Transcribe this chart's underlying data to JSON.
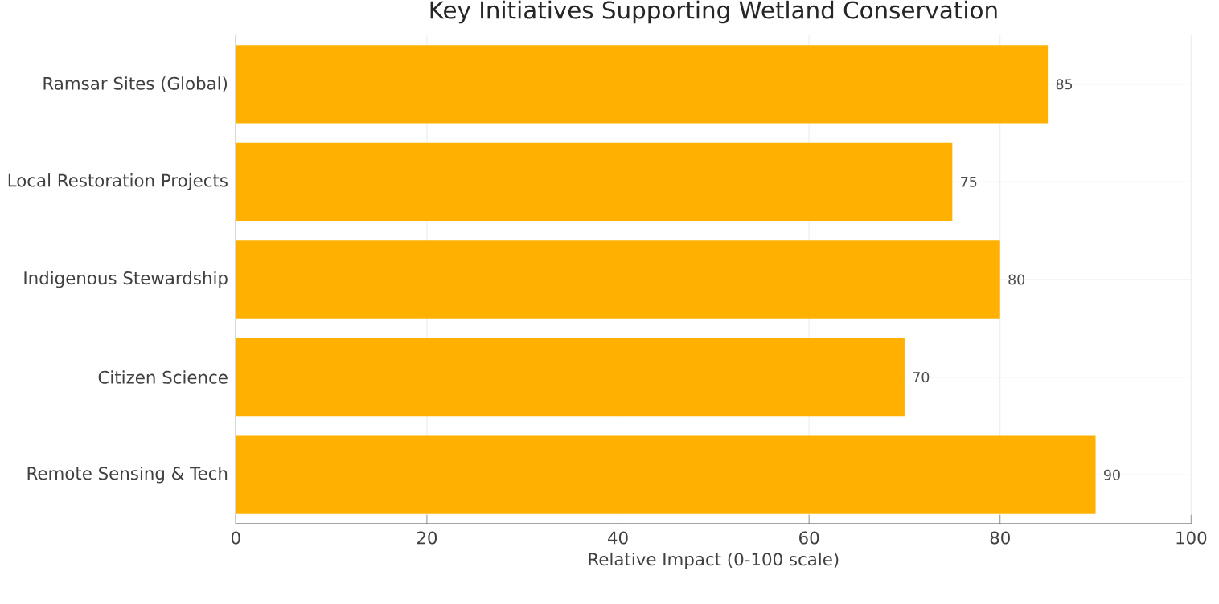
{
  "chart_data": {
    "type": "bar",
    "orientation": "horizontal",
    "title": "Key Initiatives Supporting Wetland Conservation",
    "xlabel": "Relative Impact (0-100 scale)",
    "categories": [
      "Ramsar Sites (Global)",
      "Local Restoration Projects",
      "Indigenous Stewardship",
      "Citizen Science",
      "Remote Sensing & Tech"
    ],
    "values": [
      85,
      75,
      80,
      70,
      90
    ],
    "color": "#ffb000",
    "xlim": [
      0,
      100
    ],
    "xticks": [
      0,
      20,
      40,
      60,
      80,
      100
    ],
    "grid": true,
    "data_labels": true
  }
}
